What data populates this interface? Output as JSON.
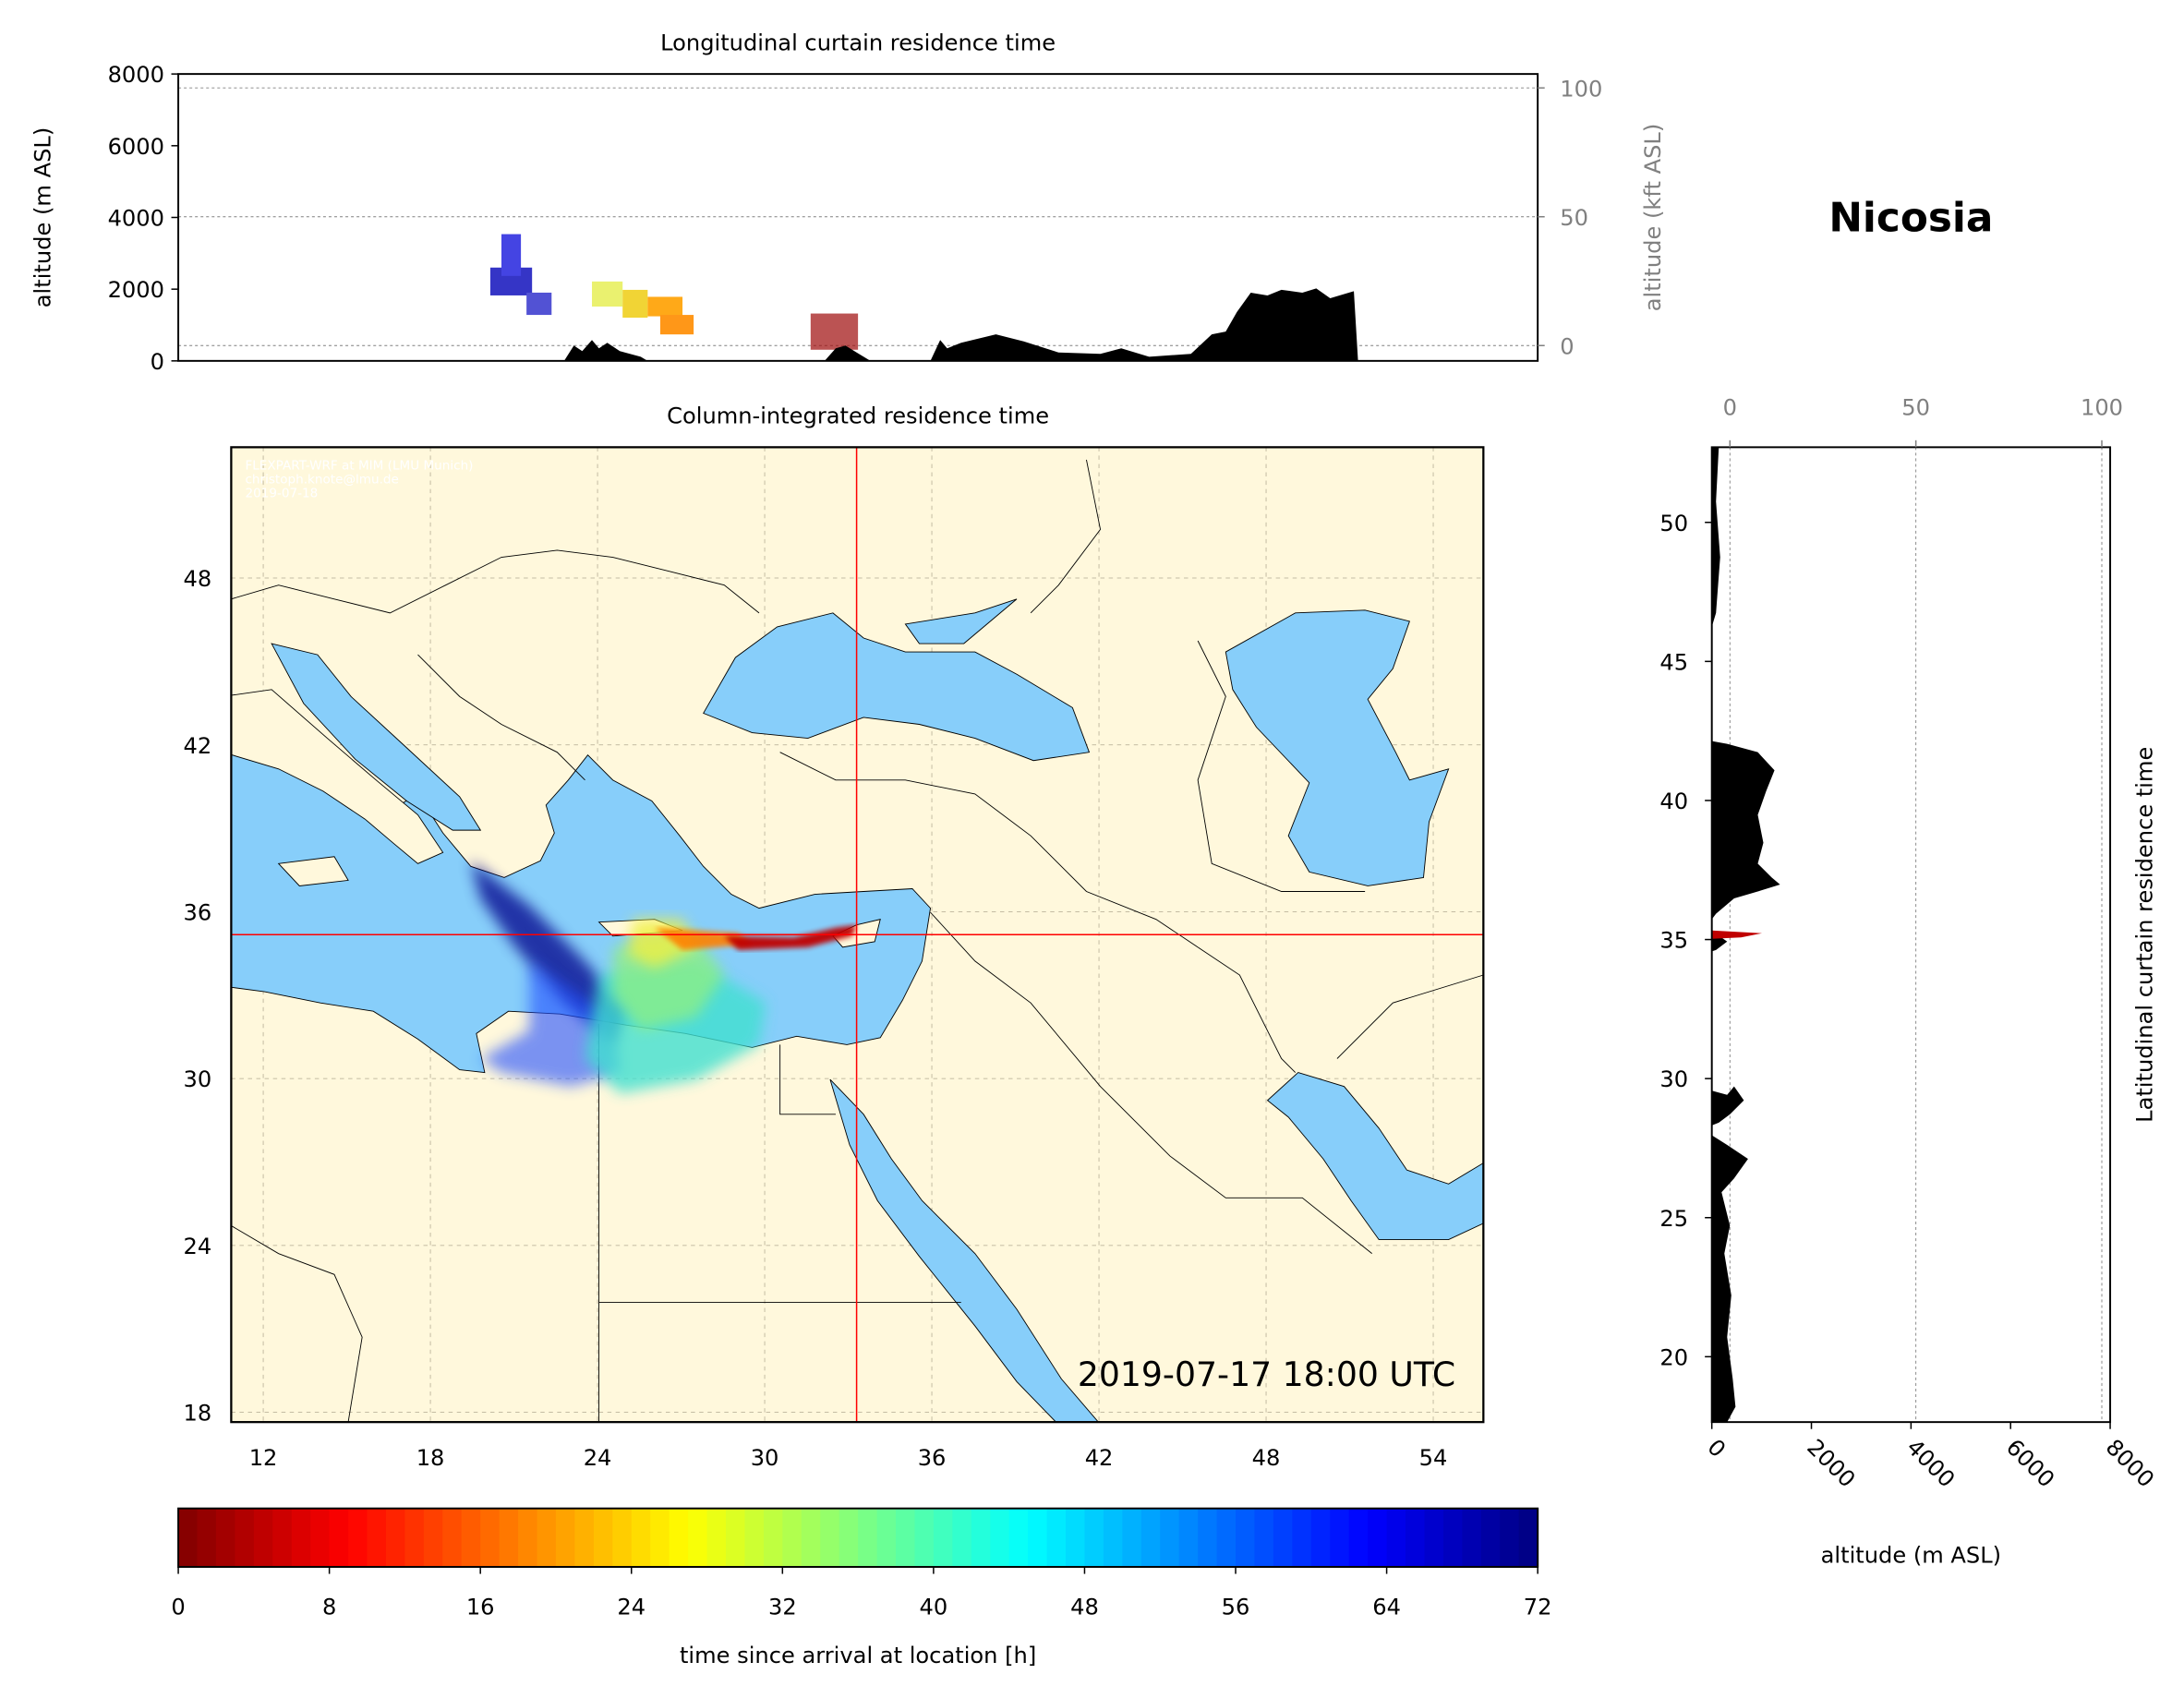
{
  "station_name": "Nicosia",
  "timestamp": "2019-07-17 18:00 UTC",
  "watermark": [
    "FLEXPART-WRF at MIM (LMU Munich)",
    "christoph.knote@lmu.de",
    "2019-07-18"
  ],
  "colors": {
    "land": "#fff8dc",
    "sea": "#87cefa",
    "crosshair": "#ff0000",
    "terrain": "#000000"
  },
  "chart_data": [
    {
      "type": "area",
      "title": "Longitudinal curtain residence time",
      "ylabel": "altitude (m ASL)",
      "ylabel_right": "altitude (kft ASL)",
      "ylim": [
        0,
        8000
      ],
      "yticks": [
        "0",
        "2000",
        "4000",
        "6000",
        "8000"
      ],
      "yticks_right": [
        "0",
        "50",
        "100"
      ],
      "grid": true
    },
    {
      "type": "heatmap",
      "title": "Column-integrated residence time",
      "xlim": [
        10.9,
        55.8
      ],
      "ylim": [
        17.6,
        52.7
      ],
      "xticks": [
        "12",
        "18",
        "24",
        "30",
        "36",
        "42",
        "48",
        "54"
      ],
      "yticks": [
        "18",
        "24",
        "30",
        "36",
        "42",
        "48"
      ],
      "crosshair": {
        "lon": 33.36,
        "lat": 35.17
      },
      "grid": true
    },
    {
      "type": "area",
      "title": "Latitudinal curtain residence time",
      "xlabel": "altitude (m ASL)",
      "xlim": [
        0,
        8000
      ],
      "xticks": [
        "0",
        "2000",
        "4000",
        "6000",
        "8000"
      ],
      "xticks_top": [
        "0",
        "50",
        "100"
      ],
      "yticks": [
        "20",
        "25",
        "30",
        "35",
        "40",
        "45",
        "50"
      ],
      "grid": true
    },
    {
      "type": "colorbar",
      "label": "time since arrival at location [h]",
      "range": [
        0,
        72
      ],
      "ticks": [
        "0",
        "8",
        "16",
        "24",
        "32",
        "40",
        "48",
        "56",
        "64",
        "72"
      ],
      "colormap": "jet_r"
    }
  ]
}
